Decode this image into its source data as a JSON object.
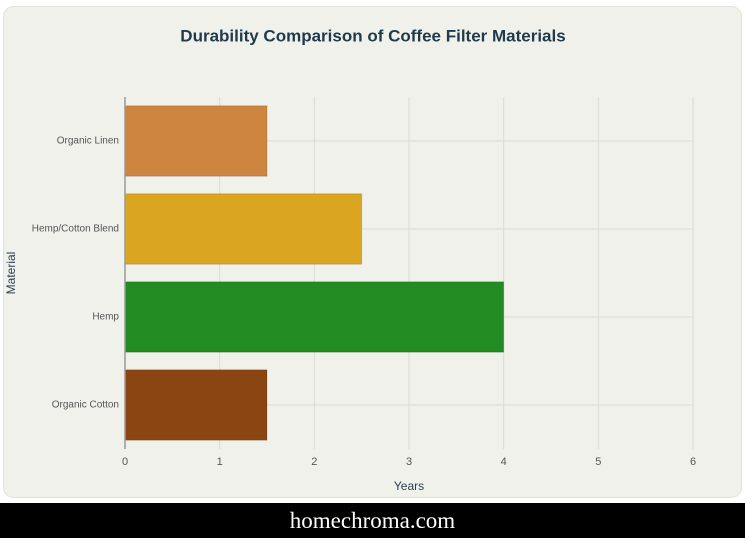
{
  "chart_data": {
    "type": "bar",
    "orientation": "horizontal",
    "title": "Durability Comparison of Coffee Filter Materials",
    "x_label": "Years",
    "y_label": "Material",
    "categories": [
      "Organic Linen",
      "Hemp/Cotton Blend",
      "Hemp",
      "Organic Cotton"
    ],
    "values": [
      1.5,
      2.5,
      4,
      1.5
    ],
    "colors": [
      "#cd853f",
      "#daa520",
      "#228b22",
      "#8b4513"
    ],
    "xlim": [
      0,
      6
    ],
    "xticks": [
      0,
      1,
      2,
      3,
      4,
      5,
      6
    ],
    "grid": true
  },
  "footer": {
    "text": "homechroma.com"
  }
}
